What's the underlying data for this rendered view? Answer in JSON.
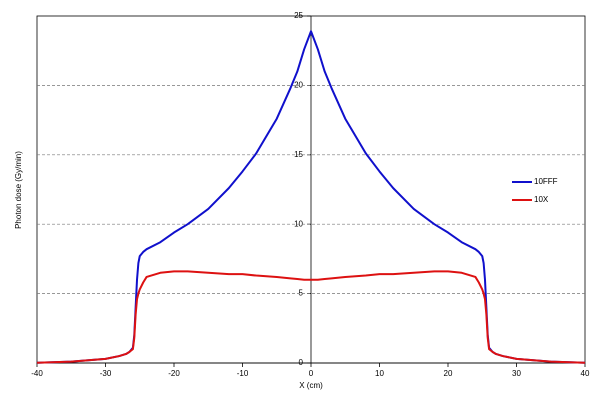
{
  "chart_data": {
    "type": "line",
    "x_label": "X (cm)",
    "y_label": "Photon dose (Gy/min)",
    "x": [
      -40,
      -35,
      -30,
      -28,
      -27,
      -26.5,
      -26,
      -25.8,
      -25.6,
      -25.4,
      -25.2,
      -25,
      -24.5,
      -24,
      -22,
      -20,
      -18,
      -15,
      -12,
      -10,
      -8,
      -5,
      -3,
      -2,
      -1,
      0,
      1,
      2,
      3,
      5,
      8,
      10,
      12,
      15,
      18,
      20,
      22,
      24,
      24.5,
      25,
      25.2,
      25.4,
      25.6,
      25.8,
      26,
      26.5,
      27,
      28,
      30,
      35,
      40
    ],
    "series": [
      {
        "name": "10FFF",
        "color": "#1010cc",
        "values": [
          0.02,
          0.1,
          0.3,
          0.5,
          0.65,
          0.8,
          1.1,
          2.0,
          4.0,
          6.0,
          7.2,
          7.7,
          8.0,
          8.2,
          8.7,
          9.4,
          10.0,
          11.1,
          12.6,
          13.8,
          15.1,
          17.6,
          19.8,
          21.0,
          22.6,
          23.9,
          22.6,
          21.0,
          19.8,
          17.6,
          15.1,
          13.8,
          12.6,
          11.1,
          10.0,
          9.4,
          8.7,
          8.2,
          8.0,
          7.7,
          7.2,
          6.0,
          4.0,
          2.0,
          1.1,
          0.8,
          0.65,
          0.5,
          0.3,
          0.1,
          0.02
        ]
      },
      {
        "name": "10X",
        "color": "#dd1111",
        "values": [
          0.02,
          0.1,
          0.3,
          0.5,
          0.65,
          0.8,
          1.0,
          1.8,
          3.5,
          4.6,
          5.0,
          5.3,
          5.8,
          6.2,
          6.5,
          6.6,
          6.6,
          6.5,
          6.4,
          6.4,
          6.3,
          6.2,
          6.1,
          6.05,
          6.0,
          6.0,
          6.0,
          6.05,
          6.1,
          6.2,
          6.3,
          6.4,
          6.4,
          6.5,
          6.6,
          6.6,
          6.5,
          6.2,
          5.8,
          5.3,
          5.0,
          4.6,
          3.5,
          1.8,
          1.0,
          0.8,
          0.65,
          0.5,
          0.3,
          0.1,
          0.02
        ]
      }
    ],
    "xlim": [
      -40,
      40
    ],
    "ylim": [
      0,
      25
    ],
    "xticks": [
      -40,
      -30,
      -20,
      -10,
      0,
      10,
      20,
      30,
      40
    ],
    "yticks": [
      0,
      5,
      10,
      15,
      20,
      25
    ],
    "grid": true,
    "legend": "right"
  }
}
